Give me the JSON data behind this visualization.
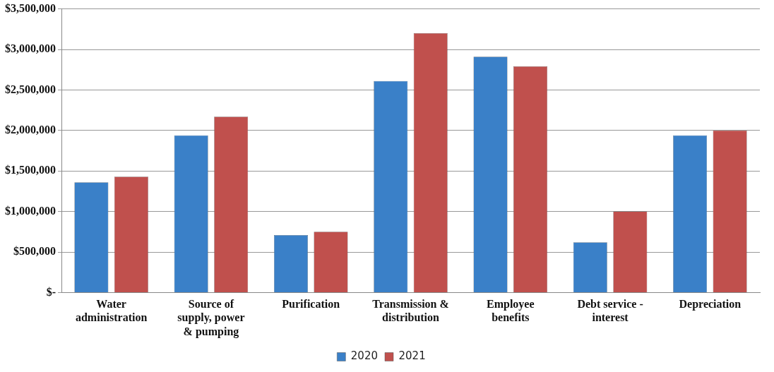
{
  "chart_data": {
    "type": "bar",
    "categories": [
      "Water administration",
      "Source of supply, power & pumping",
      "Purification",
      "Transmission & distribution",
      "Employee benefits",
      "Debt service - interest",
      "Depreciation"
    ],
    "series": [
      {
        "name": "2020",
        "color": "#3a80c8",
        "values": [
          1360000,
          1940000,
          710000,
          2610000,
          2910000,
          620000,
          1940000
        ]
      },
      {
        "name": "2021",
        "color": "#c0504d",
        "values": [
          1430000,
          2170000,
          750000,
          3200000,
          2790000,
          1000000,
          2000000
        ]
      }
    ],
    "ylim": [
      0,
      3500000
    ],
    "yticks": [
      {
        "value": 0,
        "label": "$-"
      },
      {
        "value": 500000,
        "label": "$500,000"
      },
      {
        "value": 1000000,
        "label": "$1,000,000"
      },
      {
        "value": 1500000,
        "label": "$1,500,000"
      },
      {
        "value": 2000000,
        "label": "$2,000,000"
      },
      {
        "value": 2500000,
        "label": "$2,500,000"
      },
      {
        "value": 3000000,
        "label": "$3,000,000"
      },
      {
        "value": 3500000,
        "label": "$3,500,000"
      }
    ],
    "grid": "y",
    "legend": "bottom"
  }
}
